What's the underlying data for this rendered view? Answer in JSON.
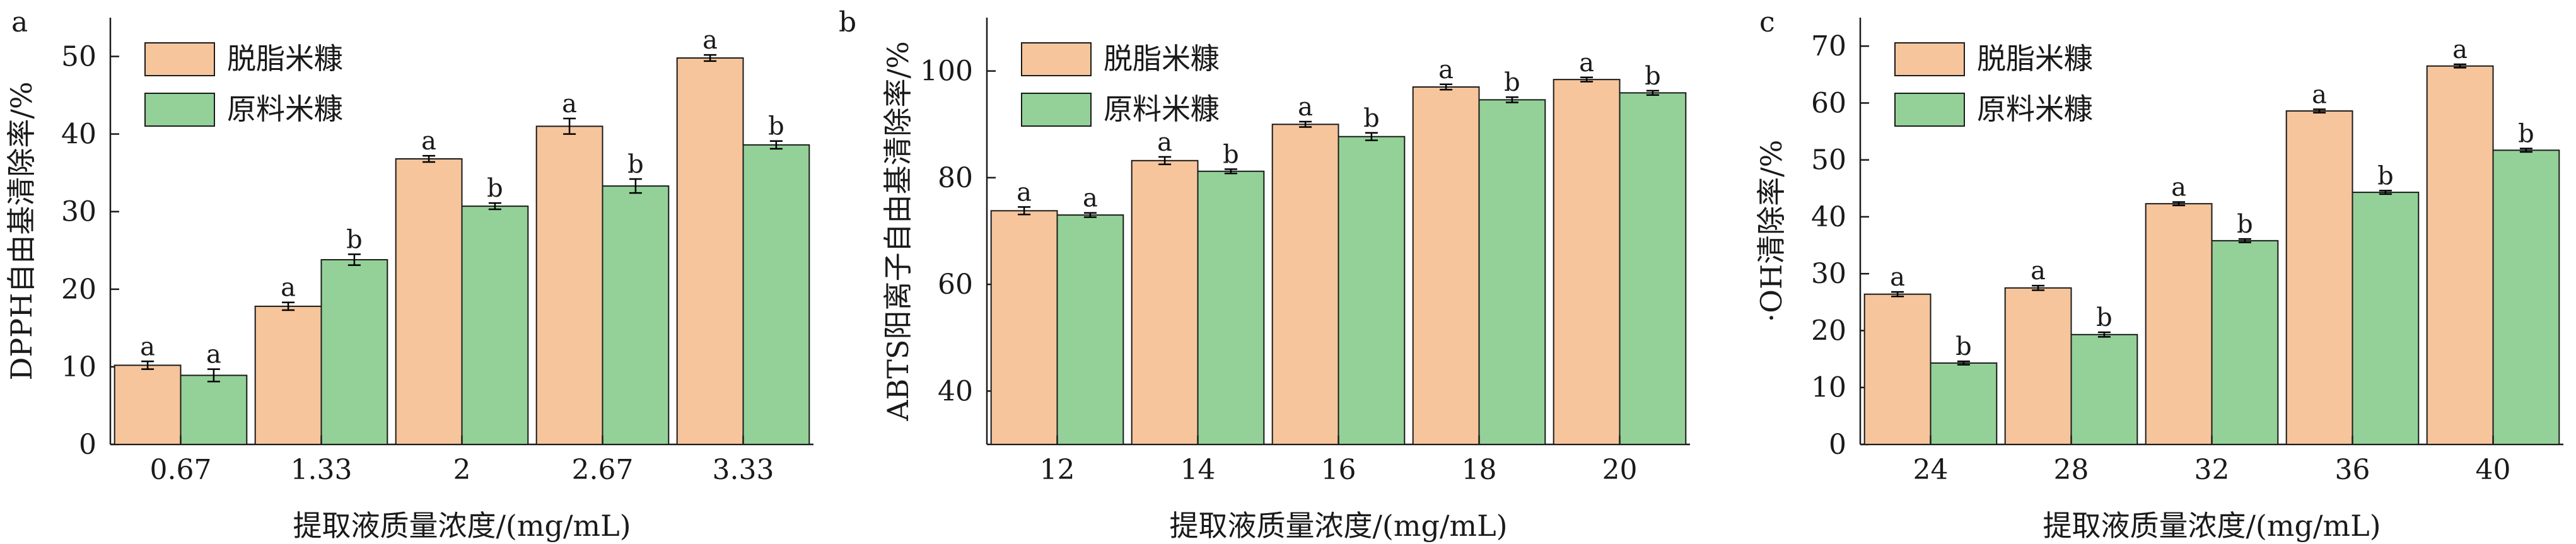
{
  "legend_labels": [
    "脱脂米糠",
    "原料米糠"
  ],
  "colors": {
    "defatted": "#F6C59C",
    "raw": "#93D198",
    "axis": "#1a1a1a",
    "error": "#000000"
  },
  "chart_data": [
    {
      "panel": "a",
      "type": "bar",
      "xlabel": "提取液质量浓度/(mg/mL)",
      "ylabel": "DPPH自由基清除率/%",
      "categories": [
        "0.67",
        "1.33",
        "2",
        "2.67",
        "3.33"
      ],
      "ylim": [
        0,
        55
      ],
      "yticks": [
        0,
        10,
        20,
        30,
        40,
        50
      ],
      "legend_position": "top-left",
      "series": [
        {
          "name": "脱脂米糠",
          "values": [
            10.2,
            17.8,
            36.8,
            41.0,
            49.8
          ],
          "errors": [
            0.5,
            0.5,
            0.4,
            1.0,
            0.4
          ],
          "labels": [
            "a",
            "a",
            "a",
            "a",
            "a"
          ]
        },
        {
          "name": "原料米糠",
          "values": [
            8.9,
            23.8,
            30.7,
            33.3,
            38.6
          ],
          "errors": [
            0.8,
            0.7,
            0.4,
            0.9,
            0.5
          ],
          "labels": [
            "a",
            "b",
            "b",
            "b",
            "b"
          ]
        }
      ]
    },
    {
      "panel": "b",
      "type": "bar",
      "xlabel": "提取液质量浓度/(mg/mL)",
      "ylabel": "ABTS阳离子自由基清除率/%",
      "categories": [
        "12",
        "14",
        "16",
        "18",
        "20"
      ],
      "ylim": [
        30,
        110
      ],
      "yticks": [
        40,
        60,
        80,
        100
      ],
      "legend_position": "top-left",
      "series": [
        {
          "name": "脱脂米糠",
          "values": [
            73.8,
            83.2,
            90.0,
            97.0,
            98.4
          ],
          "errors": [
            0.7,
            0.7,
            0.5,
            0.5,
            0.4
          ],
          "labels": [
            "a",
            "a",
            "a",
            "a",
            "a"
          ]
        },
        {
          "name": "原料米糠",
          "values": [
            73.0,
            81.2,
            87.7,
            94.6,
            95.9
          ],
          "errors": [
            0.4,
            0.4,
            0.7,
            0.5,
            0.4
          ],
          "labels": [
            "a",
            "b",
            "b",
            "b",
            "b"
          ]
        }
      ]
    },
    {
      "panel": "c",
      "type": "bar",
      "xlabel": "提取液质量浓度/(mg/mL)",
      "ylabel": "·OH清除率/%",
      "categories": [
        "24",
        "28",
        "32",
        "36",
        "40"
      ],
      "ylim": [
        0,
        75
      ],
      "yticks": [
        0,
        10,
        20,
        30,
        40,
        50,
        60,
        70
      ],
      "legend_position": "top-left",
      "series": [
        {
          "name": "脱脂米糠",
          "values": [
            26.4,
            27.5,
            42.3,
            58.6,
            66.5
          ],
          "errors": [
            0.4,
            0.4,
            0.3,
            0.3,
            0.3
          ],
          "labels": [
            "a",
            "a",
            "a",
            "a",
            "a"
          ]
        },
        {
          "name": "原料米糠",
          "values": [
            14.3,
            19.3,
            35.8,
            44.3,
            51.7
          ],
          "errors": [
            0.3,
            0.4,
            0.3,
            0.3,
            0.3
          ],
          "labels": [
            "b",
            "b",
            "b",
            "b",
            "b"
          ]
        }
      ]
    }
  ]
}
